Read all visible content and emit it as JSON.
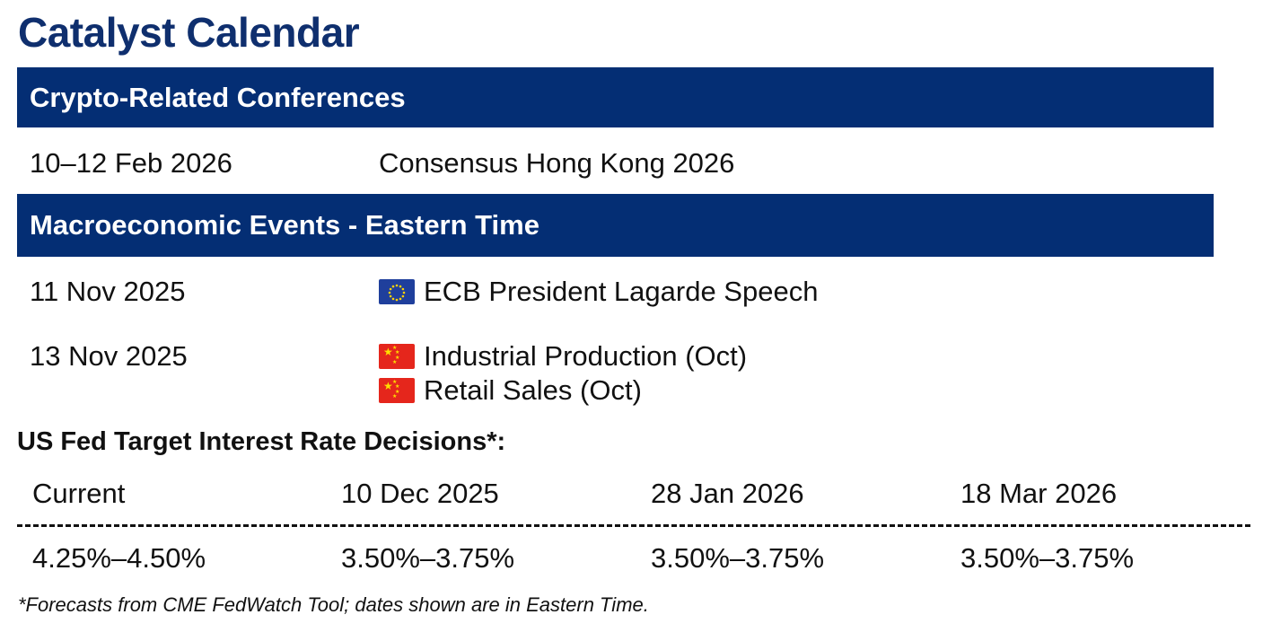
{
  "title": "Catalyst Calendar",
  "crypto_section": {
    "header": "Crypto-Related Conferences",
    "rows": [
      {
        "date": "10–12 Feb 2026",
        "event": "Consensus Hong Kong 2026"
      }
    ]
  },
  "macro_section": {
    "header": "Macroeconomic Events - Eastern Time",
    "rows": [
      {
        "date": "11 Nov 2025",
        "events": [
          {
            "flag": "eu-flag-icon",
            "label": "ECB President Lagarde Speech"
          }
        ]
      },
      {
        "date": "13 Nov 2025",
        "events": [
          {
            "flag": "china-flag-icon",
            "label": "Industrial Production (Oct)"
          },
          {
            "flag": "china-flag-icon",
            "label": "Retail Sales (Oct)"
          }
        ]
      }
    ]
  },
  "fed": {
    "title": "US Fed Target Interest Rate Decisions*:",
    "columns": [
      {
        "header": "Current",
        "value": "4.25%–4.50%"
      },
      {
        "header": "10 Dec 2025",
        "value": "3.50%–3.75%"
      },
      {
        "header": "28 Jan 2026",
        "value": "3.50%–3.75%"
      },
      {
        "header": "18 Mar 2026",
        "value": "3.50%–3.75%"
      }
    ],
    "footnote": "*Forecasts from CME FedWatch Tool; dates shown are in Eastern Time."
  },
  "colors": {
    "title": "#0f2f6e",
    "header_bg": "#042e74",
    "header_text": "#ffffff"
  }
}
